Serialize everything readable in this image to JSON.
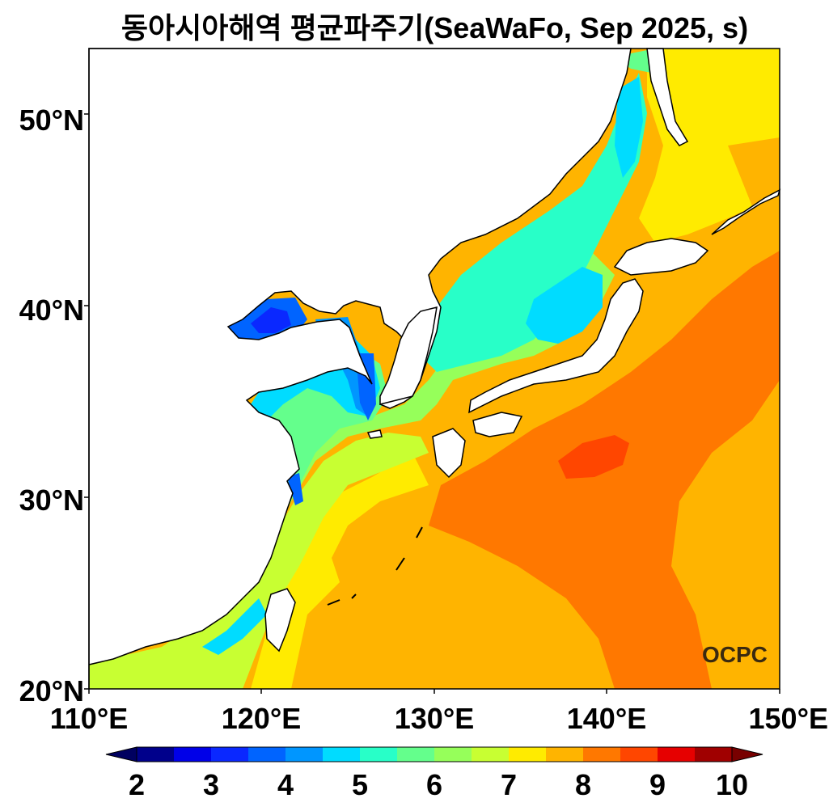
{
  "title": "동아시아해역 평균파주기(SeaWaFo, Sep 2025, s)",
  "map": {
    "region": "East Asian Seas",
    "variable": "Mean wave period",
    "unit": "s",
    "lon_range": [
      110,
      150
    ],
    "lat_range": [
      20,
      53.4
    ],
    "x_ticks": [
      "110°E",
      "120°E",
      "130°E",
      "140°E",
      "150°E"
    ],
    "y_ticks": [
      "20°N",
      "30°N",
      "40°N",
      "50°N"
    ]
  },
  "colorbar": {
    "ticks": [
      "2",
      "3",
      "4",
      "5",
      "6",
      "7",
      "8",
      "9",
      "10"
    ],
    "levels": [
      2,
      2.5,
      3,
      3.5,
      4,
      4.5,
      5,
      5.5,
      6,
      6.5,
      7,
      7.5,
      8,
      8.5,
      9,
      9.5,
      10
    ],
    "colors": [
      "#00008b",
      "#0000e8",
      "#0a28ff",
      "#0064ff",
      "#0096ff",
      "#00dcff",
      "#28ffc8",
      "#64ff8c",
      "#96ff5a",
      "#c8ff32",
      "#ffeb00",
      "#ffb400",
      "#ff7800",
      "#ff4600",
      "#e60000",
      "#a00000"
    ],
    "under_color": "#000060",
    "over_color": "#780000"
  },
  "logo": "OCPC"
}
